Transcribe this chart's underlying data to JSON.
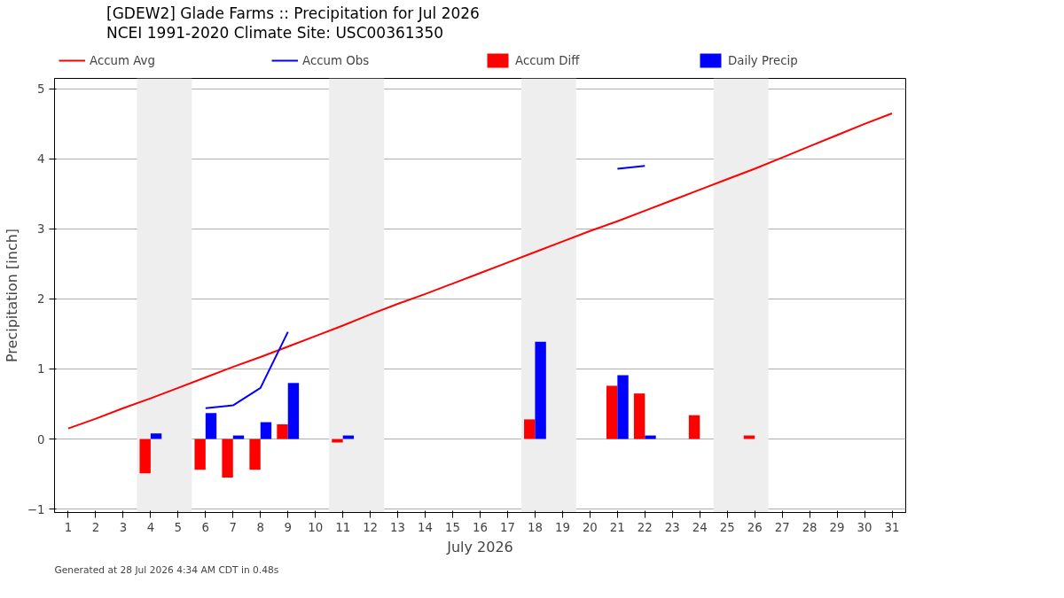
{
  "chart_data": {
    "type": "bar",
    "title": "[GDEW2] Glade Farms :: Precipitation for Jul 2026",
    "subtitle": "NCEI 1991-2020 Climate Site: USC00361350",
    "xlabel": "July 2026",
    "ylabel": "Precipitation [inch]",
    "x": [
      1,
      2,
      3,
      4,
      5,
      6,
      7,
      8,
      9,
      10,
      11,
      12,
      13,
      14,
      15,
      16,
      17,
      18,
      19,
      20,
      21,
      22,
      23,
      24,
      25,
      26,
      27,
      28,
      29,
      30,
      31
    ],
    "series": [
      {
        "name": "Accum Avg",
        "type": "line",
        "color": "#ff0000",
        "values": [
          0.15,
          0.29,
          0.44,
          0.58,
          0.73,
          0.88,
          1.03,
          1.17,
          1.32,
          1.47,
          1.62,
          1.78,
          1.93,
          2.07,
          2.22,
          2.37,
          2.52,
          2.67,
          2.82,
          2.97,
          3.11,
          3.26,
          3.41,
          3.56,
          3.71,
          3.86,
          4.02,
          4.18,
          4.34,
          4.5,
          4.65
        ]
      },
      {
        "name": "Accum Obs",
        "type": "line",
        "color": "#0000ff",
        "values": [
          null,
          null,
          null,
          null,
          null,
          0.44,
          0.48,
          0.73,
          1.53,
          null,
          null,
          null,
          null,
          null,
          null,
          null,
          null,
          null,
          null,
          null,
          3.86,
          3.9,
          null,
          null,
          null,
          null,
          null,
          null,
          null,
          null,
          null
        ]
      },
      {
        "name": "Accum Diff",
        "color": "#ff0000",
        "values": [
          null,
          null,
          null,
          -0.49,
          null,
          -0.44,
          -0.55,
          -0.44,
          0.21,
          null,
          -0.05,
          null,
          null,
          null,
          null,
          null,
          null,
          0.28,
          null,
          null,
          0.76,
          0.65,
          null,
          0.34,
          null,
          0.05,
          null,
          null,
          null,
          null,
          null
        ]
      },
      {
        "name": "Daily Precip",
        "color": "#0000ff",
        "values": [
          null,
          null,
          null,
          0.08,
          null,
          0.37,
          0.05,
          0.24,
          0.8,
          null,
          0.05,
          null,
          null,
          null,
          null,
          null,
          null,
          1.39,
          null,
          null,
          0.91,
          0.05,
          null,
          null,
          null,
          null,
          null,
          null,
          null,
          null,
          null
        ]
      }
    ],
    "bands": [
      {
        "axis": "x",
        "from": 3.5,
        "to": 5.5,
        "color": "#eeeeee"
      },
      {
        "axis": "x",
        "from": 10.5,
        "to": 12.5,
        "color": "#eeeeee"
      },
      {
        "axis": "x",
        "from": 17.5,
        "to": 19.5,
        "color": "#eeeeee"
      },
      {
        "axis": "x",
        "from": 24.5,
        "to": 26.5,
        "color": "#eeeeee"
      }
    ],
    "xlim": [
      0.5,
      31.5
    ],
    "xticks": [
      1,
      2,
      3,
      4,
      5,
      6,
      7,
      8,
      9,
      10,
      11,
      12,
      13,
      14,
      15,
      16,
      17,
      18,
      19,
      20,
      21,
      22,
      23,
      24,
      25,
      26,
      27,
      28,
      29,
      30,
      31
    ],
    "ylim": [
      -1.05,
      5.15
    ],
    "yticks": [
      -1,
      0,
      1,
      2,
      3,
      4,
      5
    ],
    "grid": "y",
    "legend": "top",
    "annotations": [
      "Generated at 28 Jul 2026 4:34 AM CDT in 0.48s"
    ]
  }
}
